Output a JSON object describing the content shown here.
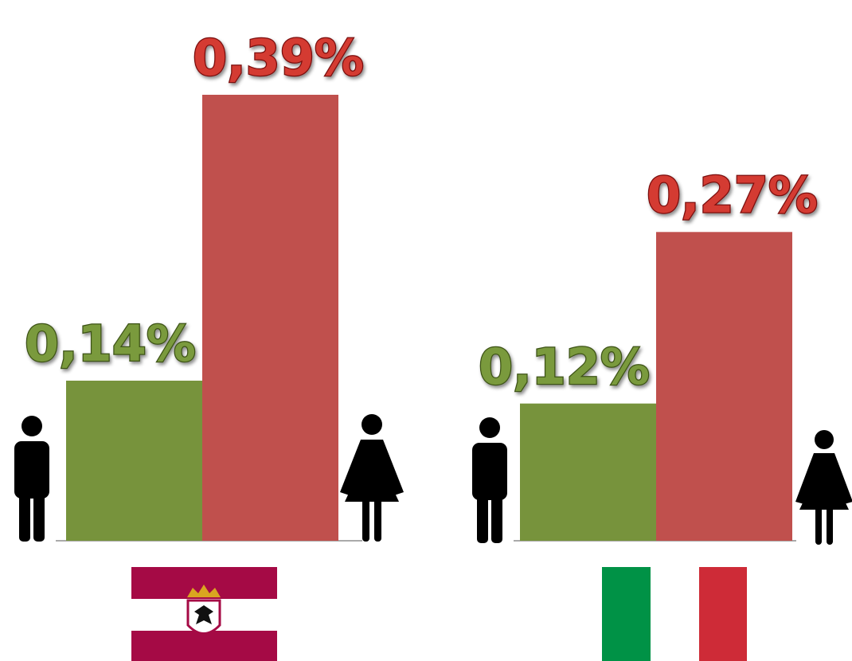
{
  "chart_data": [
    {
      "type": "bar",
      "categories": [
        null,
        null
      ],
      "values": [
        0.14,
        0.39
      ],
      "value_labels": [
        "0,14%",
        "0,39%"
      ],
      "colors": [
        "#77933c",
        "#c0504d"
      ],
      "label_colors": [
        "#7a9a3c",
        "#d43a33"
      ]
    },
    {
      "type": "bar",
      "categories": [
        null,
        null
      ],
      "values": [
        0.12,
        0.27
      ],
      "value_labels": [
        "0,12%",
        "0,27%"
      ],
      "colors": [
        "#77933c",
        "#c0504d"
      ],
      "label_colors": [
        "#7a9a3c",
        "#d43a33"
      ]
    }
  ]
}
